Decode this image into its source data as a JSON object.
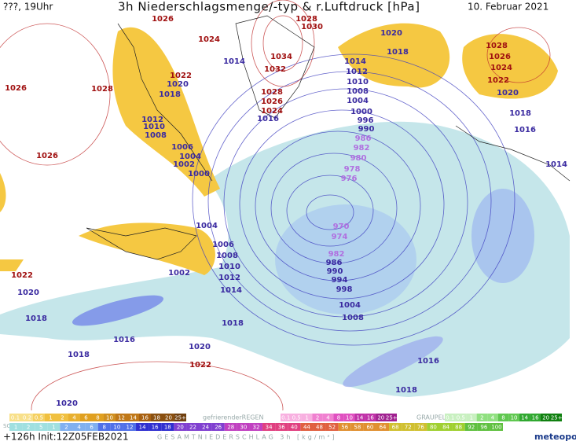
{
  "header": {
    "left": "???, 19Uhr",
    "title": "3h Niederschlagsmenge/-typ & r.Luftdruck [hPa]",
    "date": "10. Februar 2021"
  },
  "isobar_labels": [
    1026,
    1024,
    1028,
    1030,
    1034,
    1032,
    1028,
    1026,
    1026,
    1022,
    1028,
    1026,
    1024,
    1016,
    1028,
    1026,
    1024,
    1022,
    1022,
    1022,
    1020,
    1018,
    1014,
    1012,
    1010,
    1008,
    1004,
    1000,
    996,
    990,
    986,
    982,
    980,
    978,
    976,
    970,
    974,
    982,
    986,
    990,
    994,
    998,
    1004,
    1008,
    1014,
    1020,
    1018,
    1012,
    1010,
    1008,
    1006,
    1004,
    1002,
    1000,
    1004,
    1006,
    1008,
    1010,
    1012,
    1014,
    1002,
    1018,
    1020,
    1018,
    1016,
    1018,
    1020,
    1020,
    1016,
    1018,
    1014,
    1020,
    1018,
    1016
  ],
  "legend": {
    "snow": {
      "label": "SCHNEE",
      "steps": [
        "0.1",
        "0.2",
        "0.5",
        "1",
        "2",
        "4",
        "6",
        "8",
        "10",
        "12",
        "14",
        "16",
        "18",
        "20",
        "25+"
      ]
    },
    "freezing_rain": {
      "label": "gefrierenderREGEN",
      "steps": [
        "0.1",
        "0.5",
        "1",
        "2",
        "4",
        "8",
        "10",
        "14",
        "16",
        "20",
        "25+"
      ]
    },
    "graupel": {
      "label": "GRAUPEL",
      "steps": [
        "0.1",
        "0.5",
        "1",
        "2",
        "4",
        "8",
        "10",
        "14",
        "16",
        "20",
        "25+"
      ]
    },
    "total": {
      "label": "GESAMTNIEDERSCHLAG 3h [kg/m²]",
      "steps": [
        "1",
        "2",
        "5",
        "1",
        "2",
        "4",
        "6",
        "8",
        "10",
        "12",
        "14",
        "16",
        "18",
        "20",
        "22",
        "24",
        "26",
        "28",
        "30",
        "32",
        "34",
        "36",
        "40",
        "44",
        "48",
        "52",
        "56",
        "58",
        "60",
        "64",
        "68",
        "72",
        "76",
        "80",
        "84",
        "88",
        "92",
        "96",
        "100"
      ]
    }
  },
  "footer": {
    "run": "+126h Init:12Z05FEB2021",
    "brand": "meteopool.org"
  }
}
